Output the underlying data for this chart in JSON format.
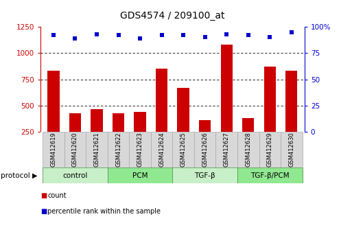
{
  "title": "GDS4574 / 209100_at",
  "samples": [
    "GSM412619",
    "GSM412620",
    "GSM412621",
    "GSM412622",
    "GSM412623",
    "GSM412624",
    "GSM412625",
    "GSM412626",
    "GSM412627",
    "GSM412628",
    "GSM412629",
    "GSM412630"
  ],
  "counts": [
    830,
    430,
    470,
    430,
    440,
    850,
    670,
    360,
    1080,
    380,
    870,
    830
  ],
  "percentiles": [
    92,
    89,
    93,
    92,
    89,
    92,
    92,
    90,
    93,
    92,
    90,
    95
  ],
  "groups": [
    {
      "label": "control",
      "start": 0,
      "end": 3,
      "color": "#c8f0c8"
    },
    {
      "label": "PCM",
      "start": 3,
      "end": 6,
      "color": "#90e890"
    },
    {
      "label": "TGF-β",
      "start": 6,
      "end": 9,
      "color": "#c8f0c8"
    },
    {
      "label": "TGF-β/PCM",
      "start": 9,
      "end": 12,
      "color": "#90e890"
    }
  ],
  "bar_color": "#cc0000",
  "dot_color": "#0000cc",
  "left_ylim": [
    250,
    1250
  ],
  "right_ylim": [
    0,
    100
  ],
  "left_yticks": [
    250,
    500,
    750,
    1000,
    1250
  ],
  "right_yticks": [
    0,
    25,
    50,
    75,
    100
  ],
  "right_yticklabels": [
    "0",
    "25",
    "50",
    "75",
    "100%"
  ],
  "grid_values": [
    500,
    750,
    1000
  ],
  "axis_color_left": "#cc0000",
  "axis_color_right": "#0000cc",
  "sample_box_color": "#d8d8d8",
  "sample_box_edge": "#aaaaaa",
  "group_border": "#559955"
}
